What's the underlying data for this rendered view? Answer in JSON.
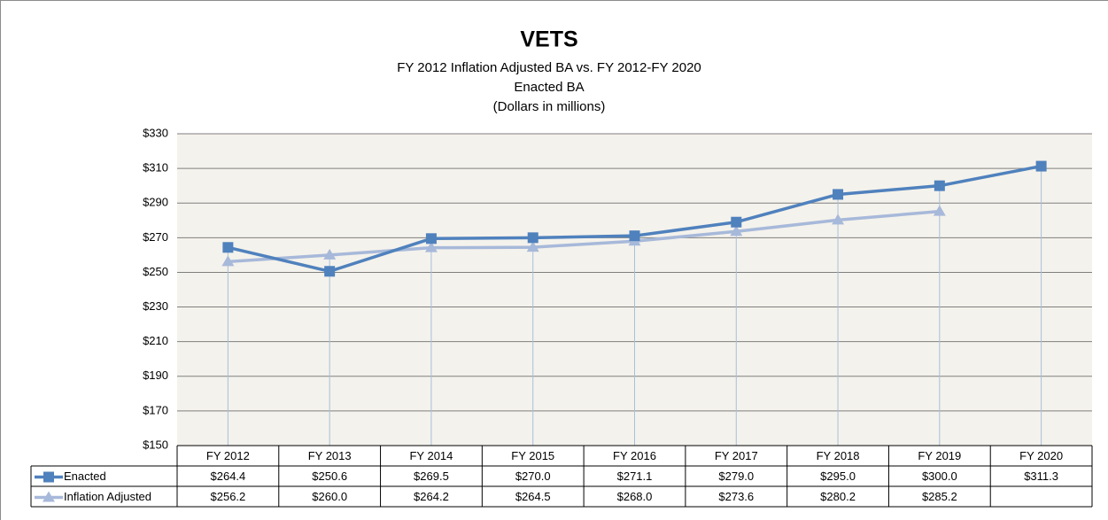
{
  "chart_data": {
    "type": "line",
    "title": "VETS",
    "subtitle": [
      "FY 2012 Inflation Adjusted BA vs. FY 2012-FY 2020",
      "Enacted BA",
      "(Dollars in  millions)"
    ],
    "categories": [
      "FY 2012",
      "FY 2013",
      "FY 2014",
      "FY 2015",
      "FY 2016",
      "FY 2017",
      "FY 2018",
      "FY 2019",
      "FY 2020"
    ],
    "series": [
      {
        "name": "Enacted",
        "color": "#4f81bd",
        "marker": "square",
        "values": [
          264.4,
          250.6,
          269.5,
          270.0,
          271.1,
          279.0,
          295.0,
          300.0,
          311.3
        ],
        "value_labels": [
          "$264.4",
          "$250.6",
          "$269.5",
          "$270.0",
          "$271.1",
          "$279.0",
          "$295.0",
          "$300.0",
          "$311.3"
        ]
      },
      {
        "name": "Inflation Adjusted",
        "color": "#a7b9da",
        "marker": "triangle",
        "values": [
          256.2,
          260.0,
          264.2,
          264.5,
          268.0,
          273.6,
          280.2,
          285.2,
          null
        ],
        "value_labels": [
          "$256.2",
          "$260.0",
          "$264.2",
          "$264.5",
          "$268.0",
          "$273.6",
          "$280.2",
          "$285.2",
          null
        ]
      }
    ],
    "ylim": [
      150,
      330
    ],
    "yticks": [
      {
        "value": 150,
        "label": "$150"
      },
      {
        "value": 170,
        "label": "$170"
      },
      {
        "value": 190,
        "label": "$190"
      },
      {
        "value": 210,
        "label": "$210"
      },
      {
        "value": 230,
        "label": "$230"
      },
      {
        "value": 250,
        "label": "$250"
      },
      {
        "value": 270,
        "label": "$270"
      },
      {
        "value": 290,
        "label": "$290"
      },
      {
        "value": 310,
        "label": "$310"
      },
      {
        "value": 330,
        "label": "$330"
      }
    ],
    "grid": true,
    "drop_lines": true,
    "data_table": true
  }
}
